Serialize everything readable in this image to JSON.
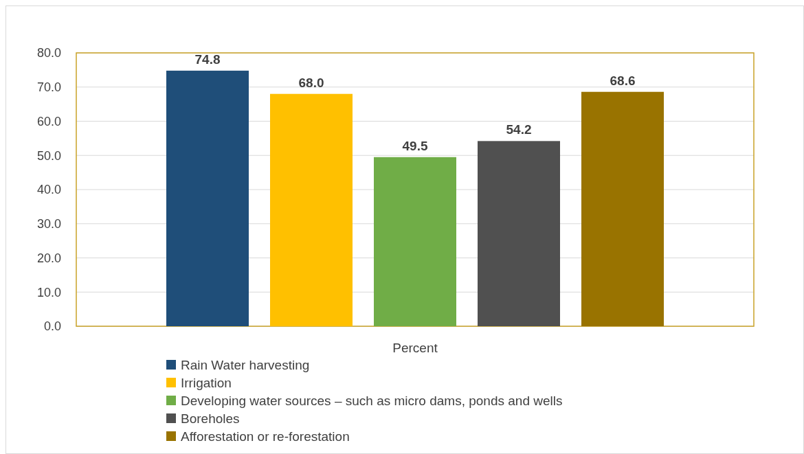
{
  "chart_data": {
    "type": "bar",
    "xlabel": "Percent",
    "categories": [
      null
    ],
    "series": [
      {
        "name": "Rain Water harvesting",
        "color": "#1f4e79",
        "values": [
          74.8
        ],
        "value_labels": [
          "74.8"
        ]
      },
      {
        "name": "Irrigation",
        "color": "#ffc000",
        "values": [
          68.0
        ],
        "value_labels": [
          "68.0"
        ]
      },
      {
        "name": "Developing water sources – such as micro dams, ponds and wells",
        "color": "#70ad47",
        "values": [
          49.5
        ],
        "value_labels": [
          "49.5"
        ]
      },
      {
        "name": "Boreholes",
        "color": "#505050",
        "values": [
          54.2
        ],
        "value_labels": [
          "54.2"
        ]
      },
      {
        "name": "Afforestation or re-forestation",
        "color": "#997300",
        "values": [
          68.6
        ],
        "value_labels": [
          "68.6"
        ]
      }
    ],
    "ylim": [
      0,
      80
    ],
    "yticks": [
      {
        "value": 0,
        "label": "0.0"
      },
      {
        "value": 10,
        "label": "10.0"
      },
      {
        "value": 20,
        "label": "20.0"
      },
      {
        "value": 30,
        "label": "30.0"
      },
      {
        "value": 40,
        "label": "40.0"
      },
      {
        "value": 50,
        "label": "50.0"
      },
      {
        "value": 60,
        "label": "60.0"
      },
      {
        "value": 70,
        "label": "70.0"
      },
      {
        "value": 80,
        "label": "80.0"
      }
    ],
    "grid": "y",
    "legend": "bottom"
  }
}
